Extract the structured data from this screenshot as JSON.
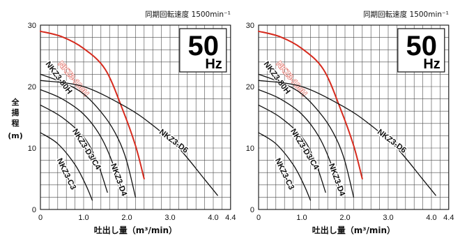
{
  "y_axis_label": "全揚程\n(m)",
  "chart_data": [
    {
      "type": "line",
      "speed_note": "同期回転速度 1500min⁻¹",
      "frequency": {
        "value": "50",
        "unit": "Hz"
      },
      "xlabel": "吐出し量（m³/min）",
      "ylabel": "全揚程(m)",
      "xlim": [
        0,
        4.4
      ],
      "ylim": [
        0,
        30
      ],
      "x_ticks": [
        "0",
        "1.0",
        "2.0",
        "3.0",
        "4.0",
        "4.4"
      ],
      "y_ticks": [
        "0",
        "10",
        "20",
        "30"
      ],
      "grid": true,
      "series": [
        {
          "name": "NKZ3-100H",
          "color": "#d62b1e",
          "points": [
            [
              0,
              29.0
            ],
            [
              0.5,
              28.1
            ],
            [
              1.0,
              26.2
            ],
            [
              1.5,
              22.8
            ],
            [
              1.9,
              16.3
            ],
            [
              2.2,
              10.4
            ],
            [
              2.4,
              5.0
            ]
          ]
        },
        {
          "name": "NKZ3-80H",
          "color": "#111111",
          "points": [
            [
              0,
              22.0
            ],
            [
              0.5,
              20.7
            ],
            [
              1.0,
              18.8
            ],
            [
              1.5,
              15.0
            ],
            [
              1.8,
              11.5
            ],
            [
              2.0,
              7.8
            ],
            [
              2.2,
              2.0
            ]
          ]
        },
        {
          "name": "NKZ3-D6",
          "color": "#111111",
          "points": [
            [
              0,
              21.0
            ],
            [
              1.0,
              20.0
            ],
            [
              2.0,
              16.6
            ],
            [
              2.6,
              13.7
            ],
            [
              3.2,
              10.0
            ],
            [
              3.8,
              4.9
            ],
            [
              4.1,
              2.3
            ]
          ]
        },
        {
          "name": "NKZ3-D4",
          "color": "#111111",
          "points": [
            [
              0,
              19.5
            ],
            [
              0.5,
              18.0
            ],
            [
              1.0,
              15.5
            ],
            [
              1.4,
              11.8
            ],
            [
              1.7,
              7.0
            ],
            [
              1.9,
              2.1
            ]
          ]
        },
        {
          "name": "NKZ3-D3/C4",
          "color": "#111111",
          "points": [
            [
              0,
              17.0
            ],
            [
              0.5,
              15.0
            ],
            [
              1.0,
              11.8
            ],
            [
              1.3,
              8.0
            ],
            [
              1.55,
              2.8
            ]
          ]
        },
        {
          "name": "NKZ3-C3",
          "color": "#111111",
          "points": [
            [
              0,
              12.5
            ],
            [
              0.4,
              10.7
            ],
            [
              0.8,
              7.3
            ],
            [
              1.05,
              4.0
            ],
            [
              1.2,
              1.5
            ]
          ]
        }
      ]
    },
    {
      "type": "line",
      "speed_note": "同期回転速度 1500min⁻¹",
      "frequency": {
        "value": "50",
        "unit": "Hz"
      },
      "xlabel": "吐出し量（m³/min）",
      "ylabel": "全揚程(m)",
      "xlim": [
        0,
        4.4
      ],
      "ylim": [
        0,
        30
      ],
      "x_ticks": [
        "0",
        "1.0",
        "2.0",
        "3.0",
        "4.0",
        "4.4"
      ],
      "y_ticks": [
        "0",
        "10",
        "20",
        "30"
      ],
      "grid": true,
      "series": [
        {
          "name": "NKZ3-100H",
          "color": "#d62b1e",
          "points": [
            [
              0,
              29.0
            ],
            [
              0.5,
              28.1
            ],
            [
              1.0,
              26.2
            ],
            [
              1.5,
              22.8
            ],
            [
              1.9,
              16.3
            ],
            [
              2.2,
              10.4
            ],
            [
              2.4,
              5.0
            ]
          ]
        },
        {
          "name": "NKZ3-80H",
          "color": "#111111",
          "points": [
            [
              0,
              22.0
            ],
            [
              0.5,
              20.7
            ],
            [
              1.0,
              18.8
            ],
            [
              1.5,
              15.0
            ],
            [
              1.8,
              11.5
            ],
            [
              2.0,
              7.8
            ],
            [
              2.2,
              2.0
            ]
          ]
        },
        {
          "name": "NKZ3-D6",
          "color": "#111111",
          "points": [
            [
              0,
              21.0
            ],
            [
              1.0,
              20.0
            ],
            [
              2.0,
              16.6
            ],
            [
              2.6,
              13.7
            ],
            [
              3.2,
              10.0
            ],
            [
              3.8,
              4.9
            ],
            [
              4.1,
              2.3
            ]
          ]
        },
        {
          "name": "NKZ3-D4",
          "color": "#111111",
          "points": [
            [
              0,
              19.5
            ],
            [
              0.5,
              18.0
            ],
            [
              1.0,
              15.5
            ],
            [
              1.4,
              11.8
            ],
            [
              1.7,
              7.0
            ],
            [
              1.9,
              2.1
            ]
          ]
        },
        {
          "name": "NKZ3-D3/C4",
          "color": "#111111",
          "points": [
            [
              0,
              17.0
            ],
            [
              0.5,
              15.0
            ],
            [
              1.0,
              11.8
            ],
            [
              1.3,
              8.0
            ],
            [
              1.55,
              2.8
            ]
          ]
        },
        {
          "name": "NKZ3-C3",
          "color": "#111111",
          "points": [
            [
              0,
              12.5
            ],
            [
              0.4,
              10.7
            ],
            [
              0.8,
              7.3
            ],
            [
              1.05,
              4.0
            ],
            [
              1.2,
              1.5
            ]
          ]
        }
      ]
    }
  ]
}
